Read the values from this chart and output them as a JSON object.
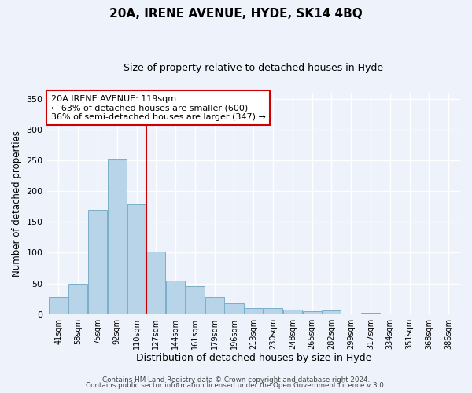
{
  "title": "20A, IRENE AVENUE, HYDE, SK14 4BQ",
  "subtitle": "Size of property relative to detached houses in Hyde",
  "xlabel": "Distribution of detached houses by size in Hyde",
  "ylabel": "Number of detached properties",
  "bin_labels": [
    "41sqm",
    "58sqm",
    "75sqm",
    "92sqm",
    "110sqm",
    "127sqm",
    "144sqm",
    "161sqm",
    "179sqm",
    "196sqm",
    "213sqm",
    "230sqm",
    "248sqm",
    "265sqm",
    "282sqm",
    "299sqm",
    "317sqm",
    "334sqm",
    "351sqm",
    "368sqm",
    "386sqm"
  ],
  "bar_values": [
    28,
    50,
    170,
    252,
    178,
    102,
    55,
    45,
    28,
    17,
    10,
    10,
    7,
    5,
    6,
    0,
    2,
    0,
    1,
    0,
    1
  ],
  "bar_color": "#b8d4e8",
  "bar_edge_color": "#7aafc8",
  "vline_x": 4.5,
  "vline_color": "#cc0000",
  "annotation_title": "20A IRENE AVENUE: 119sqm",
  "annotation_line1": "← 63% of detached houses are smaller (600)",
  "annotation_line2": "36% of semi-detached houses are larger (347) →",
  "annotation_box_color": "#ffffff",
  "annotation_box_edge": "#cc0000",
  "ylim": [
    0,
    360
  ],
  "yticks": [
    0,
    50,
    100,
    150,
    200,
    250,
    300,
    350
  ],
  "background_color": "#eef2fb",
  "footer1": "Contains HM Land Registry data © Crown copyright and database right 2024.",
  "footer2": "Contains public sector information licensed under the Open Government Licence v 3.0."
}
